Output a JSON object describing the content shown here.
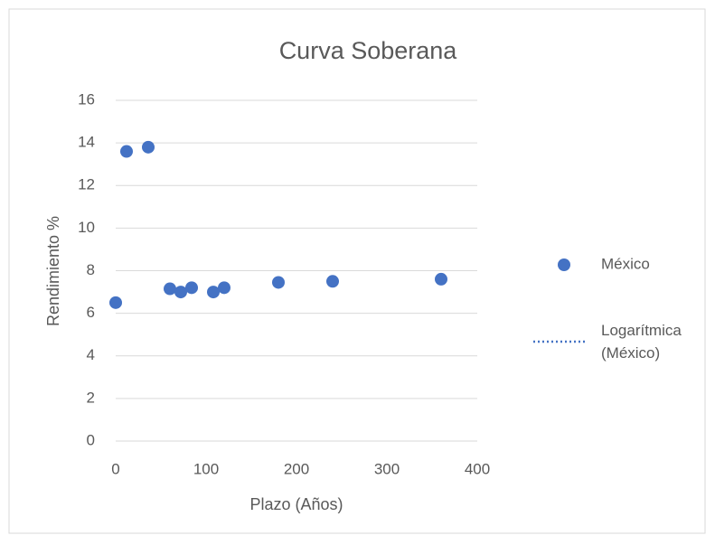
{
  "chart_data": {
    "type": "scatter",
    "title": "Curva Soberana",
    "x_label": "Plazo (Años)",
    "y_label": "Rendimiento %",
    "series": [
      {
        "name": "México",
        "color": "#4472c4",
        "x": [
          0,
          12,
          36,
          60,
          72,
          84,
          108,
          120,
          180,
          240,
          360
        ],
        "values": [
          6.5,
          13.6,
          13.8,
          7.15,
          7.0,
          7.2,
          7.0,
          7.2,
          7.45,
          7.5,
          7.6
        ]
      }
    ],
    "trendline": {
      "name": "Logarítmica (México)",
      "color": "#4472c4",
      "style": "dotted"
    },
    "xlim": [
      0,
      400
    ],
    "xticks": [
      0,
      100,
      200,
      300,
      400
    ],
    "ylim": [
      0,
      16
    ],
    "yticks": [
      0,
      2,
      4,
      6,
      8,
      10,
      12,
      14,
      16
    ],
    "grid": true,
    "legend": "right"
  }
}
